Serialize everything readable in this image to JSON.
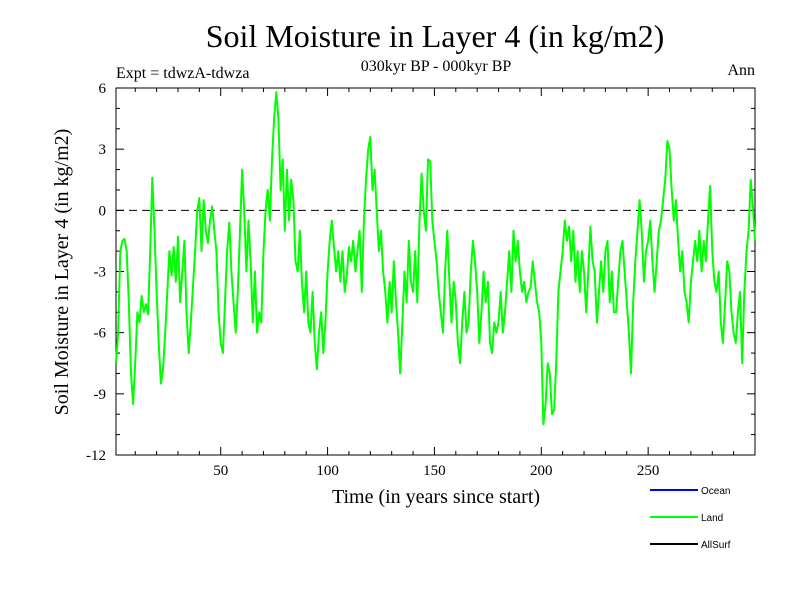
{
  "chart_data": {
    "type": "line",
    "title": "Soil Moisture in Layer 4 (in kg/m2)",
    "subtitle": "030kyr BP - 000kyr BP",
    "left_caption": "Expt = tdwzA-tdwza",
    "right_caption": "Ann",
    "xlabel": "Time (in years since start)",
    "ylabel": "Soil Moisture in Layer 4 (in kg/m2)",
    "xlim": [
      1,
      300
    ],
    "ylim": [
      -12,
      6
    ],
    "xticks": [
      50,
      100,
      150,
      200,
      250
    ],
    "yticks": [
      -12,
      -9,
      -6,
      -3,
      0,
      3,
      6
    ],
    "reference_line": {
      "y": 0,
      "style": "dashed",
      "color": "#000000"
    },
    "legend": {
      "position": "bottom-right",
      "entries": [
        {
          "label": "Ocean",
          "color": "#0000ff"
        },
        {
          "label": "Land",
          "color": "#00ff00"
        },
        {
          "label": "AllSurf",
          "color": "#000000"
        }
      ]
    },
    "series": [
      {
        "name": "Land",
        "color": "#00ff00",
        "points": [
          [
            1,
            -7.5
          ],
          [
            2,
            -6.0
          ],
          [
            3,
            -2.0
          ],
          [
            4,
            -1.5
          ],
          [
            5,
            -1.4
          ],
          [
            6,
            -2.0
          ],
          [
            7,
            -4.5
          ],
          [
            8,
            -8.0
          ],
          [
            9,
            -9.5
          ],
          [
            10,
            -7.5
          ],
          [
            11,
            -5.0
          ],
          [
            12,
            -5.5
          ],
          [
            13,
            -4.2
          ],
          [
            14,
            -5.0
          ],
          [
            15,
            -4.6
          ],
          [
            16,
            -5.1
          ],
          [
            17,
            -2.0
          ],
          [
            18,
            1.6
          ],
          [
            19,
            -1.0
          ],
          [
            20,
            -4.0
          ],
          [
            21,
            -6.5
          ],
          [
            22,
            -8.5
          ],
          [
            23,
            -7.8
          ],
          [
            24,
            -6.0
          ],
          [
            25,
            -4.0
          ],
          [
            26,
            -2.0
          ],
          [
            27,
            -3.2
          ],
          [
            28,
            -1.8
          ],
          [
            29,
            -3.5
          ],
          [
            30,
            -1.3
          ],
          [
            31,
            -4.5
          ],
          [
            32,
            -3.0
          ],
          [
            33,
            -1.5
          ],
          [
            34,
            -5.0
          ],
          [
            35,
            -7.0
          ],
          [
            36,
            -5.5
          ],
          [
            37,
            -3.8
          ],
          [
            38,
            -2.0
          ],
          [
            39,
            0.0
          ],
          [
            40,
            0.6
          ],
          [
            41,
            -2.0
          ],
          [
            42,
            0.5
          ],
          [
            43,
            -1.0
          ],
          [
            44,
            -1.6
          ],
          [
            45,
            -0.5
          ],
          [
            46,
            0.2
          ],
          [
            47,
            -1.0
          ],
          [
            48,
            -2.0
          ],
          [
            49,
            -5.0
          ],
          [
            50,
            -6.5
          ],
          [
            51,
            -7.0
          ],
          [
            52,
            -4.5
          ],
          [
            53,
            -2.0
          ],
          [
            54,
            -0.6
          ],
          [
            55,
            -3.0
          ],
          [
            56,
            -4.5
          ],
          [
            57,
            -6.0
          ],
          [
            58,
            -4.0
          ],
          [
            59,
            -1.0
          ],
          [
            60,
            2.0
          ],
          [
            61,
            0.0
          ],
          [
            62,
            -3.0
          ],
          [
            63,
            -0.5
          ],
          [
            64,
            -2.5
          ],
          [
            65,
            -5.5
          ],
          [
            66,
            -3.0
          ],
          [
            67,
            -6.0
          ],
          [
            68,
            -5.0
          ],
          [
            69,
            -5.5
          ],
          [
            70,
            -2.0
          ],
          [
            71,
            0.0
          ],
          [
            72,
            1.0
          ],
          [
            73,
            -0.5
          ],
          [
            74,
            2.5
          ],
          [
            75,
            4.5
          ],
          [
            76,
            5.8
          ],
          [
            77,
            4.5
          ],
          [
            78,
            1.0
          ],
          [
            79,
            2.5
          ],
          [
            80,
            -1.0
          ],
          [
            81,
            2.0
          ],
          [
            82,
            -0.5
          ],
          [
            83,
            1.5
          ],
          [
            84,
            0.5
          ],
          [
            85,
            -2.5
          ],
          [
            86,
            -3.0
          ],
          [
            87,
            -1.0
          ],
          [
            88,
            -3.5
          ],
          [
            89,
            -5.0
          ],
          [
            90,
            -3.0
          ],
          [
            91,
            -5.5
          ],
          [
            92,
            -6.0
          ],
          [
            93,
            -4.0
          ],
          [
            94,
            -6.5
          ],
          [
            95,
            -7.8
          ],
          [
            96,
            -6.0
          ],
          [
            97,
            -5.0
          ],
          [
            98,
            -7.0
          ],
          [
            99,
            -5.5
          ],
          [
            100,
            -3.0
          ],
          [
            101,
            -1.5
          ],
          [
            102,
            -0.5
          ],
          [
            103,
            -1.8
          ],
          [
            104,
            -3.0
          ],
          [
            105,
            -2.0
          ],
          [
            106,
            -3.5
          ],
          [
            107,
            -2.0
          ],
          [
            108,
            -4.0
          ],
          [
            109,
            -3.2
          ],
          [
            110,
            -1.8
          ],
          [
            111,
            -2.5
          ],
          [
            112,
            -1.5
          ],
          [
            113,
            -3.0
          ],
          [
            114,
            -2.0
          ],
          [
            115,
            -1.0
          ],
          [
            116,
            -4.0
          ],
          [
            117,
            -0.5
          ],
          [
            118,
            1.5
          ],
          [
            119,
            3.0
          ],
          [
            120,
            3.6
          ],
          [
            121,
            1.0
          ],
          [
            122,
            2.0
          ],
          [
            123,
            0.0
          ],
          [
            124,
            -2.0
          ],
          [
            125,
            -1.0
          ],
          [
            126,
            -3.0
          ],
          [
            127,
            -4.0
          ],
          [
            128,
            -5.5
          ],
          [
            129,
            -3.5
          ],
          [
            130,
            -5.0
          ],
          [
            131,
            -2.5
          ],
          [
            132,
            -4.5
          ],
          [
            133,
            -6.0
          ],
          [
            134,
            -8.0
          ],
          [
            135,
            -5.5
          ],
          [
            136,
            -3.0
          ],
          [
            137,
            -4.5
          ],
          [
            138,
            -1.5
          ],
          [
            139,
            -3.5
          ],
          [
            140,
            -4.0
          ],
          [
            141,
            -2.0
          ],
          [
            142,
            -4.5
          ],
          [
            143,
            -0.5
          ],
          [
            144,
            1.8
          ],
          [
            145,
            0.0
          ],
          [
            146,
            -1.0
          ],
          [
            147,
            2.5
          ],
          [
            148,
            2.4
          ],
          [
            149,
            -0.5
          ],
          [
            150,
            -1.5
          ],
          [
            151,
            -2.5
          ],
          [
            152,
            -4.0
          ],
          [
            153,
            -5.0
          ],
          [
            154,
            -6.0
          ],
          [
            155,
            -3.0
          ],
          [
            156,
            -1.0
          ],
          [
            157,
            -3.5
          ],
          [
            158,
            -5.5
          ],
          [
            159,
            -3.5
          ],
          [
            160,
            -4.5
          ],
          [
            161,
            -6.5
          ],
          [
            162,
            -7.5
          ],
          [
            163,
            -5.5
          ],
          [
            164,
            -4.0
          ],
          [
            165,
            -6.0
          ],
          [
            166,
            -5.5
          ],
          [
            167,
            -3.0
          ],
          [
            168,
            -1.5
          ],
          [
            169,
            -2.5
          ],
          [
            170,
            -4.0
          ],
          [
            171,
            -6.5
          ],
          [
            172,
            -5.0
          ],
          [
            173,
            -3.0
          ],
          [
            174,
            -4.5
          ],
          [
            175,
            -3.5
          ],
          [
            176,
            -6.5
          ],
          [
            177,
            -7.0
          ],
          [
            178,
            -5.5
          ],
          [
            179,
            -6.0
          ],
          [
            180,
            -5.5
          ],
          [
            181,
            -4.0
          ],
          [
            182,
            -6.0
          ],
          [
            183,
            -5.0
          ],
          [
            184,
            -3.5
          ],
          [
            185,
            -2.0
          ],
          [
            186,
            -4.0
          ],
          [
            187,
            -1.0
          ],
          [
            188,
            -2.5
          ],
          [
            189,
            -1.5
          ],
          [
            190,
            -3.0
          ],
          [
            191,
            -4.0
          ],
          [
            192,
            -3.5
          ],
          [
            193,
            -4.5
          ],
          [
            194,
            -4.0
          ],
          [
            195,
            -3.8
          ],
          [
            196,
            -2.5
          ],
          [
            197,
            -3.5
          ],
          [
            198,
            -4.5
          ],
          [
            199,
            -5.0
          ],
          [
            200,
            -6.5
          ],
          [
            201,
            -10.5
          ],
          [
            202,
            -9.5
          ],
          [
            203,
            -7.5
          ],
          [
            204,
            -8.0
          ],
          [
            205,
            -10.0
          ],
          [
            206,
            -9.8
          ],
          [
            207,
            -7.5
          ],
          [
            208,
            -4.0
          ],
          [
            209,
            -3.0
          ],
          [
            210,
            -2.0
          ],
          [
            211,
            -0.5
          ],
          [
            212,
            -1.5
          ],
          [
            213,
            -0.8
          ],
          [
            214,
            -2.5
          ],
          [
            215,
            -1.0
          ],
          [
            216,
            -3.5
          ],
          [
            217,
            -2.0
          ],
          [
            218,
            -4.0
          ],
          [
            219,
            -2.0
          ],
          [
            220,
            -3.0
          ],
          [
            221,
            -5.0
          ],
          [
            222,
            -3.0
          ],
          [
            223,
            -0.8
          ],
          [
            224,
            -2.5
          ],
          [
            225,
            -3.0
          ],
          [
            226,
            -5.5
          ],
          [
            227,
            -4.0
          ],
          [
            228,
            -2.5
          ],
          [
            229,
            -4.0
          ],
          [
            230,
            -2.0
          ],
          [
            231,
            -1.5
          ],
          [
            232,
            -4.5
          ],
          [
            233,
            -3.0
          ],
          [
            234,
            -5.0
          ],
          [
            235,
            -5.0
          ],
          [
            236,
            -3.5
          ],
          [
            237,
            -2.0
          ],
          [
            238,
            -1.5
          ],
          [
            239,
            -3.0
          ],
          [
            240,
            -4.5
          ],
          [
            241,
            -6.0
          ],
          [
            242,
            -8.0
          ],
          [
            243,
            -4.5
          ],
          [
            244,
            -2.5
          ],
          [
            245,
            -1.0
          ],
          [
            246,
            0.5
          ],
          [
            247,
            -1.0
          ],
          [
            248,
            -3.5
          ],
          [
            249,
            -2.0
          ],
          [
            250,
            -1.5
          ],
          [
            251,
            -0.5
          ],
          [
            252,
            -2.5
          ],
          [
            253,
            -4.0
          ],
          [
            254,
            -2.5
          ],
          [
            255,
            -1.0
          ],
          [
            256,
            -0.5
          ],
          [
            257,
            0.5
          ],
          [
            258,
            1.5
          ],
          [
            259,
            3.4
          ],
          [
            260,
            3.0
          ],
          [
            261,
            1.0
          ],
          [
            262,
            -0.5
          ],
          [
            263,
            0.5
          ],
          [
            264,
            -1.5
          ],
          [
            265,
            -3.0
          ],
          [
            266,
            -2.0
          ],
          [
            267,
            -4.0
          ],
          [
            268,
            -4.5
          ],
          [
            269,
            -5.5
          ],
          [
            270,
            -3.5
          ],
          [
            271,
            -2.5
          ],
          [
            272,
            -1.5
          ],
          [
            273,
            -2.5
          ],
          [
            274,
            -1.0
          ],
          [
            275,
            -3.0
          ],
          [
            276,
            -1.5
          ],
          [
            277,
            -2.5
          ],
          [
            278,
            -0.5
          ],
          [
            279,
            1.2
          ],
          [
            280,
            -2.0
          ],
          [
            281,
            -3.5
          ],
          [
            282,
            -4.0
          ],
          [
            283,
            -3.0
          ],
          [
            284,
            -5.5
          ],
          [
            285,
            -6.5
          ],
          [
            286,
            -4.5
          ],
          [
            287,
            -2.5
          ],
          [
            288,
            -3.0
          ],
          [
            289,
            -5.0
          ],
          [
            290,
            -6.0
          ],
          [
            291,
            -6.5
          ],
          [
            292,
            -5.0
          ],
          [
            293,
            -4.0
          ],
          [
            294,
            -7.5
          ],
          [
            295,
            -4.0
          ],
          [
            296,
            -2.0
          ],
          [
            297,
            -1.0
          ],
          [
            298,
            1.5
          ],
          [
            299,
            0.2
          ],
          [
            300,
            -1.5
          ]
        ]
      }
    ]
  }
}
